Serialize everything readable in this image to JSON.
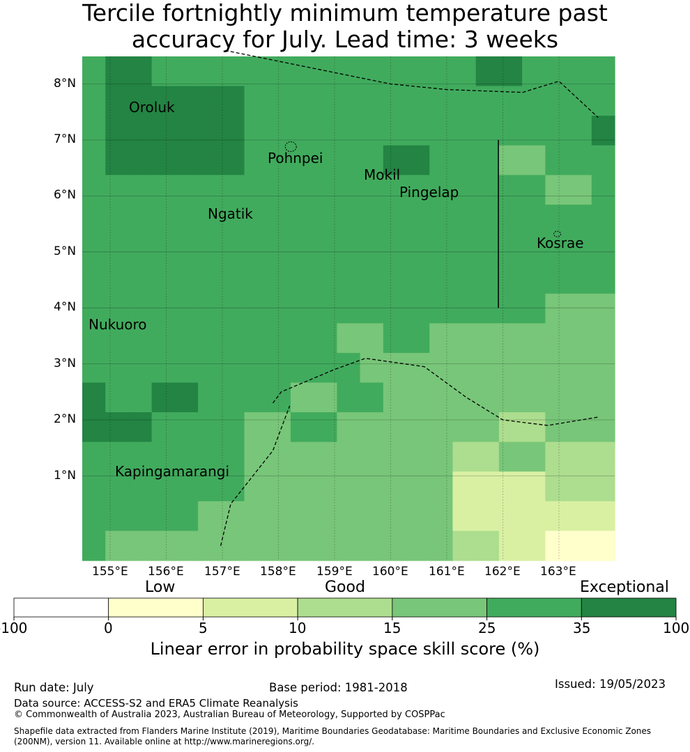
{
  "title_line1": "Tercile fortnightly minimum temperature past",
  "title_line2": "accuracy for July. Lead time: 3 weeks",
  "map": {
    "x_ticks": [
      "155°E",
      "156°E",
      "157°E",
      "158°E",
      "159°E",
      "160°E",
      "161°E",
      "162°E",
      "163°E"
    ],
    "y_ticks": [
      "8°N",
      "7°N",
      "6°N",
      "5°N",
      "4°N",
      "3°N",
      "2°N",
      "1°N"
    ],
    "place_labels": [
      "Oroluk",
      "Pohnpei",
      "Mokil",
      "Pingelap",
      "Ngatik",
      "Kosrae",
      "Nukuoro",
      "Kapingamarangi"
    ],
    "grid_rows": [
      [
        5,
        6,
        6,
        5,
        5,
        5,
        5,
        5,
        5,
        5,
        5,
        5,
        5,
        5,
        5,
        5,
        5,
        6,
        6,
        5,
        5,
        5,
        5
      ],
      [
        5,
        6,
        6,
        6,
        6,
        6,
        6,
        5,
        5,
        5,
        5,
        5,
        5,
        5,
        5,
        5,
        5,
        5,
        5,
        5,
        5,
        5,
        5
      ],
      [
        5,
        6,
        6,
        6,
        6,
        6,
        6,
        5,
        5,
        5,
        5,
        5,
        5,
        5,
        5,
        5,
        5,
        5,
        5,
        5,
        5,
        5,
        6
      ],
      [
        5,
        6,
        6,
        6,
        6,
        6,
        6,
        5,
        5,
        5,
        5,
        5,
        5,
        6,
        6,
        5,
        5,
        5,
        4,
        4,
        5,
        5,
        5
      ],
      [
        5,
        5,
        5,
        5,
        5,
        5,
        5,
        5,
        5,
        5,
        5,
        5,
        5,
        5,
        5,
        5,
        5,
        5,
        5,
        5,
        4,
        4,
        5
      ],
      [
        5,
        5,
        5,
        5,
        5,
        5,
        5,
        5,
        5,
        5,
        5,
        5,
        5,
        5,
        5,
        5,
        5,
        5,
        5,
        5,
        5,
        5,
        5
      ],
      [
        5,
        5,
        5,
        5,
        5,
        5,
        5,
        5,
        5,
        5,
        5,
        5,
        5,
        5,
        5,
        5,
        5,
        5,
        5,
        5,
        5,
        5,
        5
      ],
      [
        5,
        5,
        5,
        5,
        5,
        5,
        5,
        5,
        5,
        5,
        5,
        5,
        5,
        5,
        5,
        5,
        5,
        5,
        5,
        5,
        5,
        5,
        5
      ],
      [
        5,
        5,
        5,
        5,
        5,
        5,
        5,
        5,
        5,
        5,
        5,
        5,
        5,
        5,
        5,
        5,
        5,
        5,
        5,
        5,
        4,
        4,
        4
      ],
      [
        5,
        5,
        5,
        5,
        5,
        5,
        5,
        5,
        5,
        5,
        5,
        4,
        4,
        5,
        5,
        4,
        4,
        4,
        4,
        4,
        4,
        4,
        4
      ],
      [
        5,
        5,
        5,
        5,
        5,
        5,
        5,
        5,
        5,
        5,
        5,
        5,
        4,
        4,
        4,
        4,
        4,
        4,
        4,
        4,
        4,
        4,
        4
      ],
      [
        6,
        5,
        5,
        6,
        6,
        5,
        5,
        5,
        5,
        4,
        4,
        5,
        5,
        4,
        4,
        4,
        4,
        4,
        4,
        4,
        4,
        4,
        4
      ],
      [
        6,
        6,
        6,
        5,
        5,
        5,
        5,
        4,
        4,
        5,
        5,
        4,
        4,
        4,
        4,
        4,
        4,
        4,
        3,
        3,
        4,
        4,
        4
      ],
      [
        5,
        5,
        5,
        5,
        5,
        5,
        5,
        4,
        4,
        4,
        4,
        4,
        4,
        4,
        4,
        4,
        3,
        3,
        4,
        4,
        3,
        3,
        3
      ],
      [
        5,
        5,
        5,
        5,
        5,
        5,
        5,
        4,
        4,
        4,
        4,
        4,
        4,
        4,
        4,
        4,
        2,
        2,
        2,
        2,
        3,
        3,
        3
      ],
      [
        5,
        5,
        5,
        5,
        5,
        4,
        4,
        4,
        4,
        4,
        4,
        4,
        4,
        4,
        4,
        4,
        2,
        2,
        2,
        2,
        2,
        2,
        2
      ],
      [
        5,
        4,
        4,
        4,
        4,
        4,
        4,
        4,
        4,
        4,
        4,
        4,
        4,
        4,
        4,
        4,
        3,
        3,
        2,
        2,
        1,
        1,
        1
      ]
    ],
    "region_boundaries": [
      {
        "lon": [
          157.05,
          160.0,
          161.0,
          162.35,
          163.0,
          163.7
        ],
        "lat": [
          8.6,
          8.0,
          7.9,
          7.85,
          8.05,
          7.4
        ]
      },
      {
        "lon": [
          156.97,
          157.15,
          157.9,
          158.2
        ],
        "lat": [
          -0.25,
          0.5,
          1.45,
          2.25
        ]
      },
      {
        "lon": [
          157.9,
          158.05,
          159.0,
          159.55,
          160.6,
          161.35,
          162.0,
          162.8,
          163.7
        ],
        "lat": [
          2.3,
          2.5,
          2.9,
          3.1,
          2.95,
          2.4,
          2.0,
          1.9,
          2.05
        ]
      }
    ],
    "vertical_line": {
      "lon": 161.92,
      "lat": [
        4.0,
        7.0
      ]
    },
    "islands": [
      {
        "name": "Pohnpei",
        "lon": 158.22,
        "lat": 6.88
      },
      {
        "name": "Kosrae",
        "lon": 162.97,
        "lat": 5.32
      }
    ]
  },
  "colorbar": {
    "categories": [
      "Low",
      "Good",
      "Exceptional"
    ],
    "ticks": [
      "-100",
      "0",
      "5",
      "10",
      "15",
      "25",
      "35",
      "100"
    ],
    "colors": [
      "#ffffff",
      "#ffffcc",
      "#d9f0a3",
      "#addd8e",
      "#78c679",
      "#41ab5d",
      "#238443"
    ],
    "label": "Linear error in probability space skill score (%)"
  },
  "footer": {
    "run_date": "Run date: July",
    "base_period": "Base period: 1981-2018",
    "issued": "Issued: 19/05/2023",
    "data_source": "Data source: ACCESS-S2 and ERA5 Climate Reanalysis",
    "copyright": "© Commonwealth of Australia 2023, Australian Bureau of Meteorology, Supported by COSPPac",
    "shapefile_line1": "Shapefile data extracted from Flanders Marine Institute (2019), Maritime Boundaries Geodatabase: Maritime Boundaries and Exclusive Economic Zones",
    "shapefile_line2": "(200NM), version 11. Available online at http://www.marineregions.org/."
  }
}
